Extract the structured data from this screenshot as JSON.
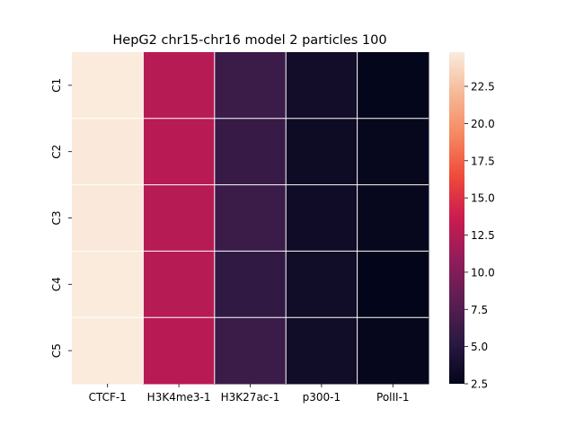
{
  "chart_data": {
    "type": "heatmap",
    "title": "HepG2 chr15-chr16 model 2 particles 100",
    "xlabel": "",
    "ylabel": "",
    "columns": [
      "CTCF-1",
      "H3K4me3-1",
      "H3K27ac-1",
      "p300-1",
      "PolII-1"
    ],
    "rows": [
      "C1",
      "C2",
      "C3",
      "C4",
      "C5"
    ],
    "values": [
      [
        24.8,
        12.6,
        6.2,
        3.6,
        2.6
      ],
      [
        24.7,
        12.7,
        6.0,
        3.3,
        2.8
      ],
      [
        24.7,
        12.6,
        6.2,
        3.4,
        2.8
      ],
      [
        24.8,
        12.6,
        5.6,
        3.5,
        2.5
      ],
      [
        24.8,
        12.7,
        6.2,
        3.5,
        2.7
      ]
    ],
    "colorbar": {
      "min": 2.5,
      "max": 24.8,
      "ticks": [
        "2.5",
        "5.0",
        "7.5",
        "10.0",
        "12.5",
        "15.0",
        "17.5",
        "20.0",
        "22.5"
      ],
      "colormap": "rocket"
    },
    "grid": true,
    "cell_border_color": "#ffffff"
  }
}
